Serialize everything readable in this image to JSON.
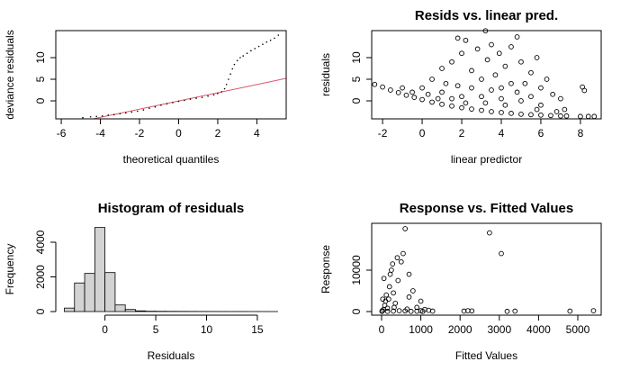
{
  "chart_data": [
    {
      "type": "scatter",
      "xlabel": "theoretical quantiles",
      "ylabel": "deviance residuals",
      "xlim": [
        -6.28,
        5.5
      ],
      "ylim": [
        -4.17,
        16.25
      ],
      "xticks": [
        -6,
        -4,
        -2,
        0,
        2,
        4
      ],
      "yticks": [
        0,
        5,
        10
      ],
      "marker": "dot",
      "color": "#000000",
      "x": [
        -4.9,
        -4.5,
        -4.2,
        -3.9,
        -3.6,
        -3.3,
        -3.0,
        -2.7,
        -2.4,
        -2.1,
        -1.8,
        -1.5,
        -1.2,
        -0.9,
        -0.6,
        -0.3,
        0,
        0.3,
        0.6,
        0.9,
        1.2,
        1.5,
        1.8,
        2.0,
        2.2,
        2.35,
        2.45,
        2.55,
        2.65,
        2.75,
        2.85,
        3.0,
        3.15,
        3.3,
        3.5,
        3.7,
        3.9,
        4.1,
        4.3,
        4.5,
        4.7,
        4.9,
        5.1
      ],
      "y": [
        -3.9,
        -3.7,
        -3.6,
        -3.5,
        -3.3,
        -3.2,
        -3.0,
        -2.8,
        -2.6,
        -2.4,
        -2.1,
        -1.7,
        -1.4,
        -1.0,
        -0.7,
        -0.4,
        -0.1,
        0.1,
        0.4,
        0.6,
        0.8,
        1.1,
        1.4,
        1.7,
        2.1,
        2.8,
        3.8,
        5.0,
        6.2,
        7.4,
        8.4,
        9.3,
        10.0,
        10.4,
        11.0,
        11.6,
        12.1,
        12.6,
        13.1,
        13.6,
        14.0,
        14.5,
        15.2
      ],
      "line": {
        "x": [
          -4.4,
          5.5
        ],
        "y": [
          -4.2,
          5.2
        ],
        "color": "#df536b"
      }
    },
    {
      "type": "scatter",
      "title": "Resids vs. linear pred.",
      "xlabel": "linear predictor",
      "ylabel": "residuals",
      "xlim": [
        -2.55,
        9.05
      ],
      "ylim": [
        -4.17,
        16.25
      ],
      "xticks": [
        -2,
        0,
        2,
        4,
        6,
        8
      ],
      "yticks": [
        0,
        5,
        10
      ],
      "marker": "circle",
      "color": "#000000",
      "x": [
        -2.4,
        -2,
        -1.6,
        -1.2,
        -0.8,
        -0.4,
        0,
        0.5,
        1,
        1.5,
        2,
        2.5,
        3,
        3.5,
        4,
        4.5,
        5,
        5.5,
        6,
        6.5,
        7,
        7.3,
        8,
        8.4,
        8.7,
        0,
        0.5,
        1,
        1.2,
        1.5,
        1.8,
        2,
        2.2,
        2.5,
        2.8,
        3,
        3.2,
        3.3,
        3.5,
        3.7,
        3.9,
        4,
        4.2,
        4.5,
        4.8,
        5,
        5.2,
        5.5,
        5.8,
        6,
        6.3,
        6.6,
        7,
        8.1,
        8.2,
        -1,
        -0.5,
        0.3,
        1,
        2,
        3,
        4,
        5,
        6,
        3.5,
        2.5,
        4.5,
        1.5,
        5.5,
        4.2,
        3.2,
        2.2,
        6.8,
        7.2,
        0.8,
        1.8,
        4.8,
        5.8
      ],
      "y": [
        3.8,
        3.2,
        2.5,
        1.9,
        1.3,
        0.8,
        0.3,
        -0.3,
        -0.8,
        -1.2,
        -1.6,
        -1.9,
        -2.2,
        -2.5,
        -2.7,
        -2.9,
        -3.1,
        -3.2,
        -3.3,
        -3.4,
        -3.5,
        -3.5,
        -3.6,
        -3.6,
        -3.6,
        3,
        5,
        7.5,
        4,
        9,
        14.5,
        11,
        14,
        7,
        12,
        5,
        16.2,
        9.5,
        13,
        6,
        11,
        3,
        8,
        12.5,
        14.8,
        9,
        4,
        6.5,
        10,
        3,
        5,
        1.5,
        0.5,
        3.2,
        2.4,
        3,
        2,
        1.5,
        2,
        1,
        1,
        0.5,
        0,
        -1,
        2.5,
        3,
        4,
        0.5,
        1,
        -1,
        -0.5,
        -0.5,
        -2.5,
        -2,
        0.5,
        3.5,
        2,
        -2
      ]
    },
    {
      "type": "histogram",
      "title": "Histogram of residuals",
      "xlabel": "Residuals",
      "ylabel": "Frequency",
      "xlim": [
        -4.84,
        17.84
      ],
      "ylim": [
        -208,
        5091
      ],
      "xticks": [
        0,
        5,
        10,
        15
      ],
      "yticks": [
        0,
        2000,
        4000
      ],
      "color": "#d3d3d3",
      "bins": [
        -4,
        -3,
        -2,
        -1,
        0,
        1,
        2,
        3,
        4,
        5,
        6,
        7,
        8,
        9,
        10,
        11,
        12,
        13,
        14,
        15,
        16,
        17
      ],
      "counts": [
        200,
        1650,
        2200,
        4850,
        2250,
        380,
        120,
        40,
        20,
        15,
        12,
        10,
        8,
        6,
        5,
        4,
        3,
        3,
        2,
        2,
        1
      ]
    },
    {
      "type": "scatter",
      "title": "Response vs. Fitted Values",
      "xlabel": "Fitted Values",
      "ylabel": "Response",
      "xlim": [
        -252,
        5596
      ],
      "ylim": [
        -870,
        21300
      ],
      "xticks": [
        0,
        1000,
        2000,
        3000,
        4000,
        5000
      ],
      "yticks": [
        0,
        10000
      ],
      "marker": "circle",
      "color": "#000000",
      "x": [
        20,
        50,
        80,
        100,
        120,
        150,
        180,
        200,
        220,
        250,
        280,
        300,
        350,
        400,
        420,
        500,
        550,
        600,
        700,
        800,
        900,
        1000,
        1100,
        1200,
        1300,
        150,
        300,
        450,
        600,
        750,
        900,
        1050,
        60,
        320,
        650,
        2100,
        2200,
        2300,
        2750,
        3050,
        3200,
        3400,
        4800,
        5400,
        10,
        30,
        700,
        1000
      ],
      "y": [
        200,
        500,
        1500,
        2500,
        4000,
        800,
        3000,
        6000,
        9000,
        10000,
        11500,
        4500,
        2000,
        13000,
        7500,
        12000,
        14000,
        20000,
        3500,
        5000,
        1000,
        2500,
        500,
        300,
        100,
        50,
        100,
        200,
        150,
        50,
        80,
        40,
        8000,
        1000,
        600,
        100,
        200,
        150,
        19000,
        14000,
        50,
        100,
        100,
        200,
        50,
        3000,
        9000,
        200
      ]
    }
  ]
}
